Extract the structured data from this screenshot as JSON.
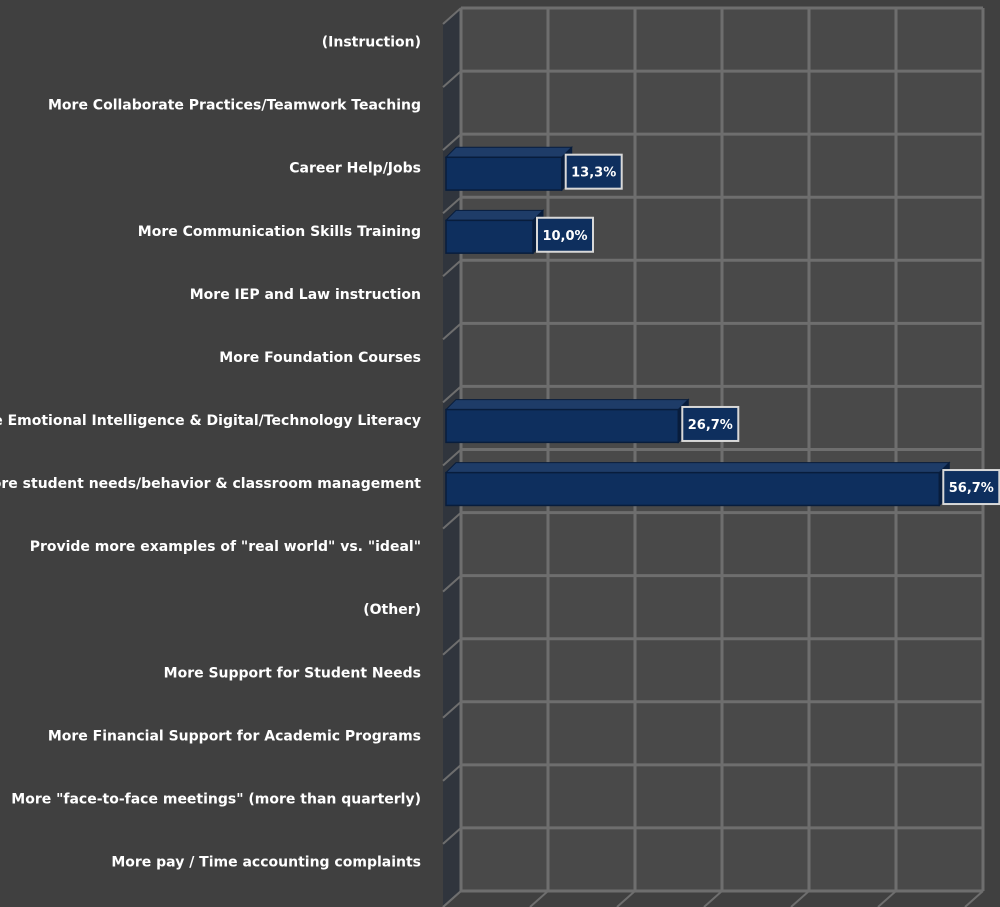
{
  "chart_data": {
    "type": "bar",
    "orientation": "horizontal",
    "three_d": true,
    "title": "",
    "xlabel": "",
    "ylabel": "",
    "categories": [
      "(Instruction)",
      "More Collaborate Practices/Teamwork Teaching",
      "Career Help/Jobs",
      "More Communication Skills Training",
      "More IEP and Law instruction",
      "More Foundation Courses",
      "More Emotional Intelligence & Digital/Technology Literacy",
      "More student needs/behavior & classroom management",
      "Provide more examples of \"real world\" vs. \"ideal\"",
      "(Other)",
      "More Support for Student Needs",
      "More Financial Support for Academic Programs",
      "More \"face-to-face meetings\" (more than quarterly)",
      "More pay / Time accounting complaints"
    ],
    "values": [
      null,
      null,
      13.3,
      10.0,
      null,
      null,
      26.7,
      56.7,
      null,
      null,
      null,
      null,
      null,
      null
    ],
    "data_labels": [
      "",
      "",
      "13,3%",
      "10,0%",
      "",
      "",
      "26,7%",
      "56,7%",
      "",
      "",
      "",
      "",
      "",
      ""
    ],
    "xlim": [
      0,
      60
    ],
    "xticks": [
      0,
      10,
      20,
      30,
      40,
      50,
      60
    ],
    "value_unit": "%",
    "grid": true,
    "legend": "none",
    "colors": {
      "background": "#404040",
      "bar_front": "#0e2f5e",
      "bar_top": "#1e3c68",
      "bar_border": "#081d3c",
      "gridline": "#6e6e6e",
      "back_wall": "#494949",
      "side_wall": "#30353d",
      "label_text": "#ffffff",
      "data_label_box": "#0e2f5e",
      "data_label_border": "#d8d8d8"
    }
  }
}
